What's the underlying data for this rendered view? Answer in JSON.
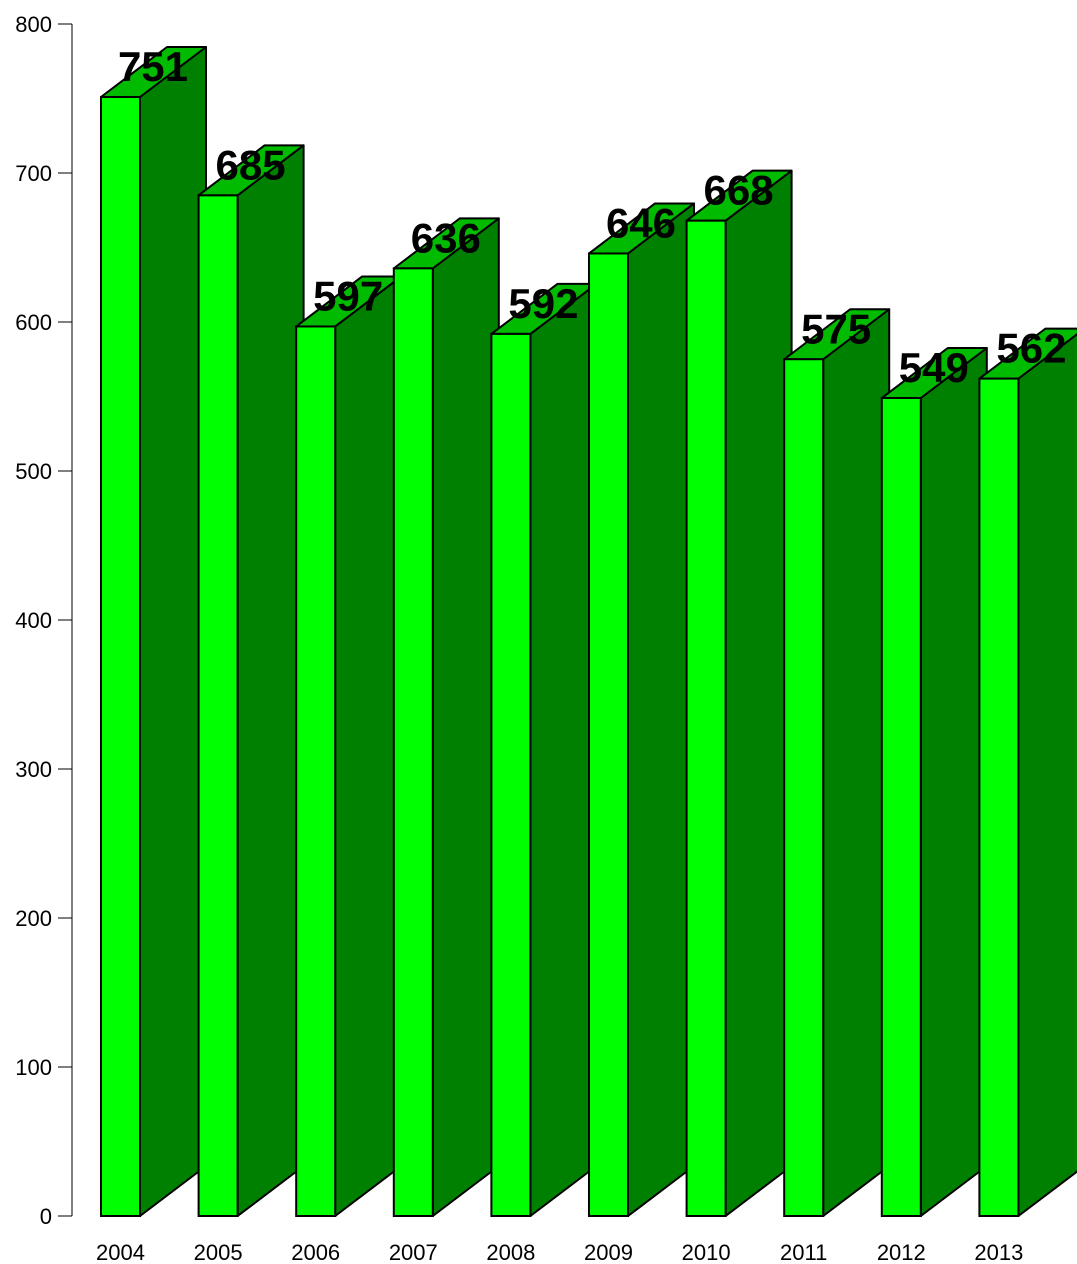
{
  "chart_data": {
    "type": "bar",
    "style": "3d",
    "categories": [
      "2004",
      "2005",
      "2006",
      "2007",
      "2008",
      "2009",
      "2010",
      "2011",
      "2012",
      "2013"
    ],
    "values": [
      751,
      685,
      597,
      636,
      592,
      646,
      668,
      575,
      549,
      562
    ],
    "data_labels": [
      "751",
      "685",
      "597",
      "636",
      "592",
      "646",
      "668",
      "575",
      "549",
      "562"
    ],
    "ylim": [
      0,
      800
    ],
    "yticks": [
      0,
      100,
      200,
      300,
      400,
      500,
      600,
      700,
      800
    ],
    "ytick_labels": [
      "0",
      "100",
      "200",
      "300",
      "400",
      "500",
      "600",
      "700",
      "800"
    ],
    "grid": false,
    "legend": "none",
    "colors": {
      "front": "#00ff00",
      "side": "#008000",
      "top": "#00bb00",
      "outline": "#000000"
    }
  }
}
